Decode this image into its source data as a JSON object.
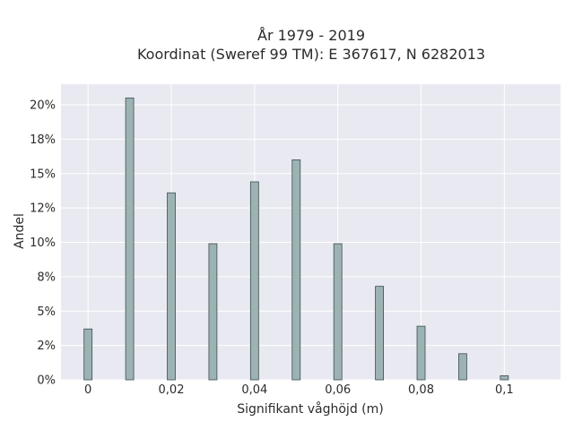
{
  "chart_data": {
    "type": "bar",
    "title_lines": [
      "År 1979 - 2019",
      "Koordinat (Sweref 99 TM): E 367617, N 6282013"
    ],
    "xlabel": "Signifikant våghöjd (m)",
    "ylabel": "Andel",
    "x": [
      0,
      0.01,
      0.02,
      0.03,
      0.04,
      0.05,
      0.06,
      0.07,
      0.08,
      0.09,
      0.1
    ],
    "values": [
      3.7,
      20.5,
      13.6,
      9.9,
      14.4,
      16.0,
      9.9,
      6.8,
      3.9,
      1.9,
      0.3
    ],
    "value_unit": "%",
    "xlim": [
      -0.0065,
      0.1135
    ],
    "ylim": [
      0,
      21.5
    ],
    "xticks": [
      0,
      0.02,
      0.04,
      0.06,
      0.08,
      0.1
    ],
    "xtick_labels": [
      "0",
      "0,02",
      "0,04",
      "0,06",
      "0,08",
      "0,1"
    ],
    "yticks": [
      0,
      2.5,
      5,
      7.5,
      10,
      12.5,
      15,
      17.5,
      20
    ],
    "ytick_labels": [
      "0%",
      "2%",
      "5%",
      "8%",
      "10%",
      "12%",
      "15%",
      "18%",
      "20%"
    ],
    "grid": true,
    "colors": {
      "plot_bg": "#e9e9f1",
      "grid": "#ffffff",
      "bar_fill": "#9cb2b3",
      "bar_stroke": "#3d4f50"
    }
  }
}
